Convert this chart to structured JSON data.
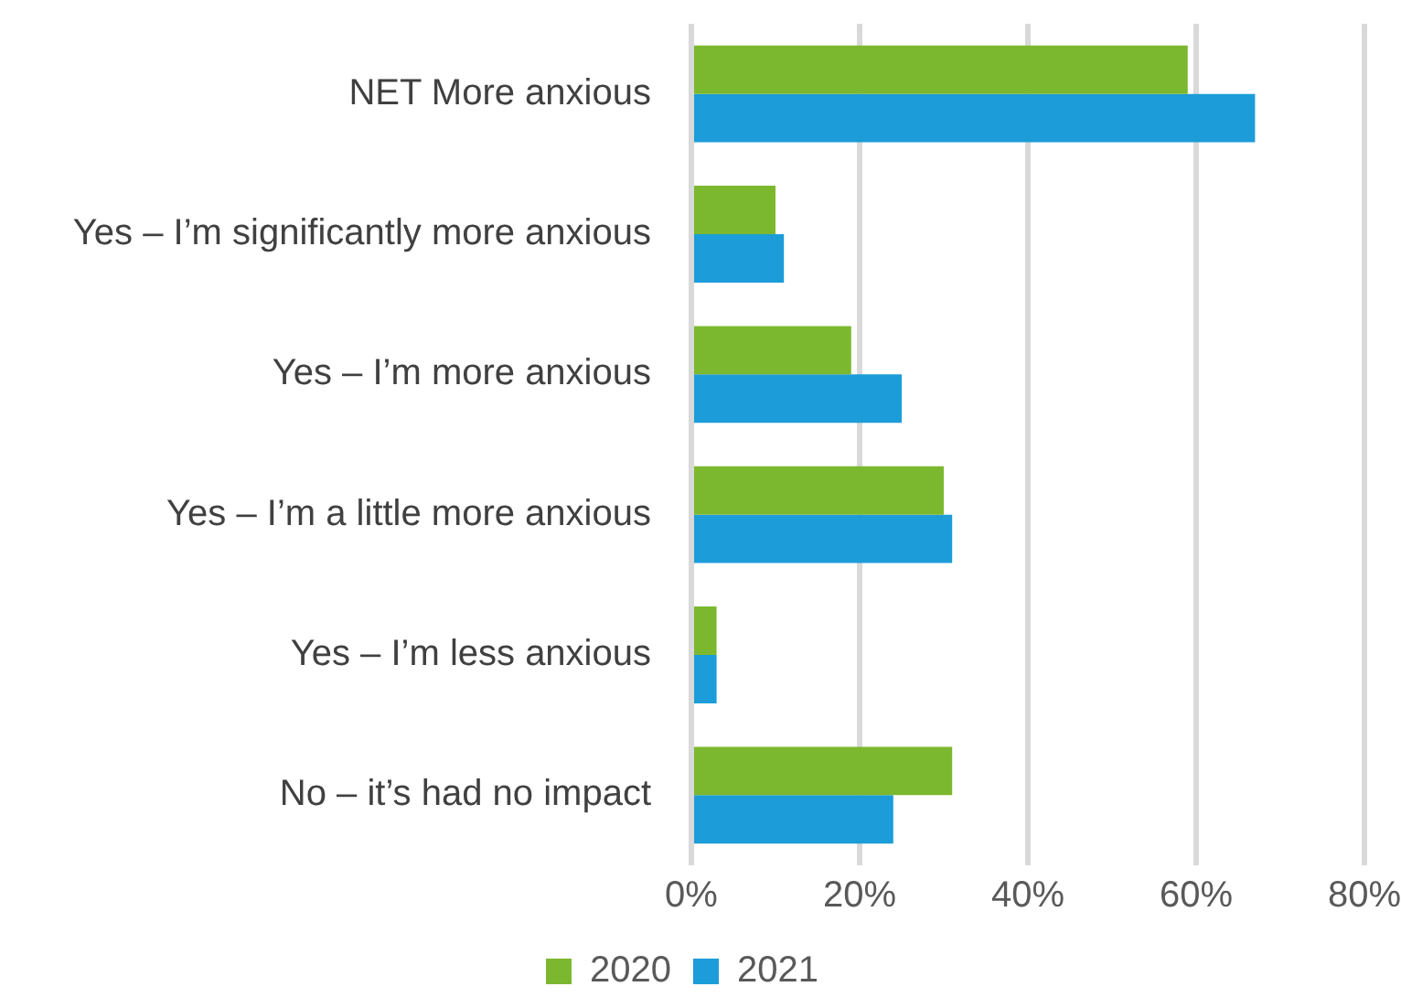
{
  "chart_data": {
    "type": "bar",
    "orientation": "horizontal",
    "categories": [
      "NET More anxious",
      "Yes – I’m significantly more anxious",
      "Yes – I’m more anxious",
      "Yes – I’m a little more anxious",
      "Yes – I’m less anxious",
      "No – it’s had no impact"
    ],
    "series": [
      {
        "name": "2020",
        "color": "#7cb82f",
        "values": [
          59,
          10,
          19,
          30,
          3,
          31
        ]
      },
      {
        "name": "2021",
        "color": "#1c9cd8",
        "values": [
          67,
          11,
          25,
          31,
          3,
          24
        ]
      }
    ],
    "xlim": [
      0,
      80
    ],
    "xticks": [
      {
        "value": 0,
        "label": "0%"
      },
      {
        "value": 20,
        "label": "20%"
      },
      {
        "value": 40,
        "label": "40%"
      },
      {
        "value": 60,
        "label": "60%"
      },
      {
        "value": 80,
        "label": "80%"
      }
    ],
    "grid": "x",
    "legend": "bottom"
  }
}
